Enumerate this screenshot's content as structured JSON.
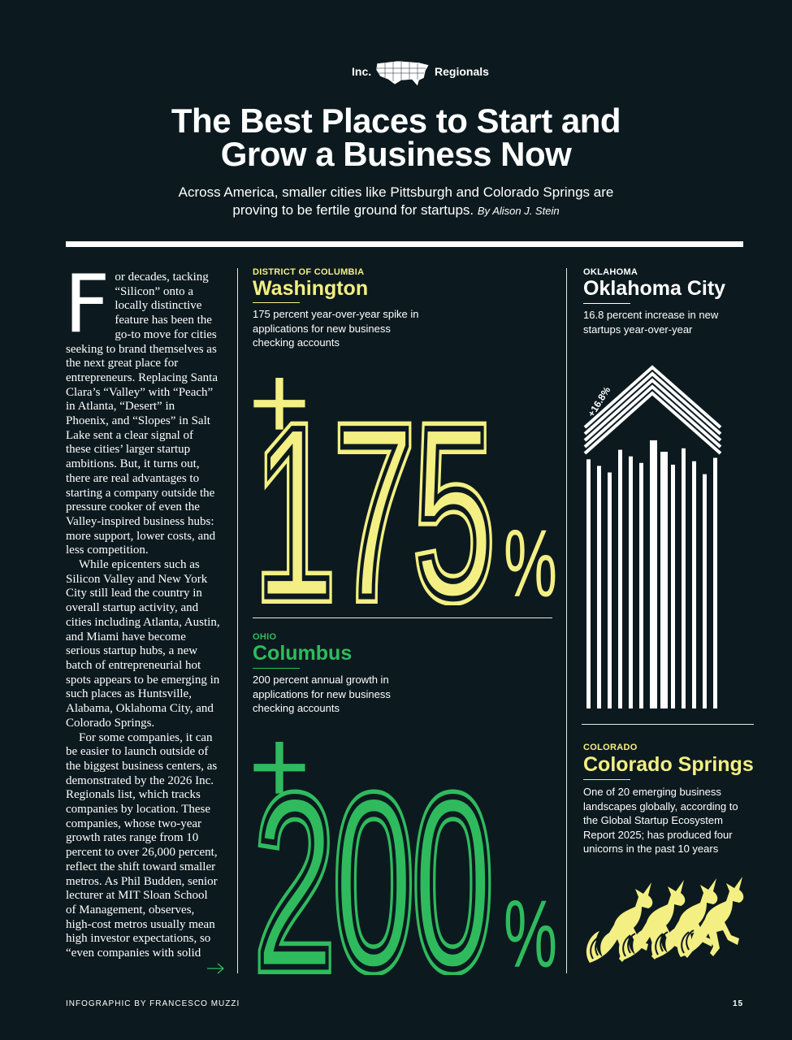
{
  "header": {
    "brand_left": "Inc.",
    "brand_right": "Regionals",
    "title_lines": [
      "The Best Places to Start and",
      "Grow a Business Now"
    ],
    "subtitle": "Across America, smaller cities like Pittsburgh and Colorado Springs are proving to be fertile ground for startups.",
    "byline": "By Alison J. Stein"
  },
  "article": {
    "drop_cap": "F",
    "paragraphs": [
      "or decades, tacking “Silicon” onto a locally distinctive feature has been the go-to move for cities seeking to brand themselves as the next great place for entrepreneurs. Replacing Santa Clara’s “Valley” with “Peach” in Atlanta, “Desert” in Phoenix, and “Slopes” in Salt Lake sent a clear signal of these cities’ larger startup ambitions. But, it turns out, there are real advantages to starting a company outside the pressure cooker of even the Valley-inspired business hubs: more support, lower costs, and less competition.",
      "While epicenters such as Silicon Valley and New York City still lead the country in overall startup activity, and cities including Atlanta, Austin, and Miami have become serious startup hubs, a new batch of entrepreneurial hot spots appears to be emerging in such places as Huntsville, Alabama, Oklahoma City, and Colorado Springs.",
      "For some companies, it can be easier to launch outside of the biggest business centers, as demonstrated by the 2026 Inc. Regionals list, which tracks companies by location. These companies, whose two-year growth rates range from 10 percent to over 26,000 percent, reflect the shift toward smaller metros. As Phil Budden, senior lecturer at MIT Sloan School of Management, observes, high-cost metros usually mean high investor expectations, so “even companies with solid"
    ]
  },
  "cities": [
    {
      "state": "DISTRICT OF COLUMBIA",
      "city": "Washington",
      "description": "175 percent year-over-year spike in applications for new business checking accounts",
      "stat": {
        "sign": "+",
        "number": "175",
        "unit": "%"
      }
    },
    {
      "state": "OHIO",
      "city": "Columbus",
      "description": "200 percent annual growth in applications for new business checking accounts",
      "stat": {
        "sign": "+",
        "number": "200",
        "unit": "%"
      }
    },
    {
      "state": "OKLAHOMA",
      "city": "Oklahoma City",
      "description": "16.8 percent increase in new startups year-over-year",
      "stat": {
        "label": "+16.8%"
      }
    },
    {
      "state": "COLORADO",
      "city": "Colorado Springs",
      "description": "One of 20 emerging business landscapes globally, according to the Global Startup Ecosystem Report 2025; has produced four unicorns in the past 10 years"
    }
  ],
  "footer": {
    "credit": "INFOGRAPHIC BY FRANCESCO MUZZI",
    "page_number": "15"
  }
}
